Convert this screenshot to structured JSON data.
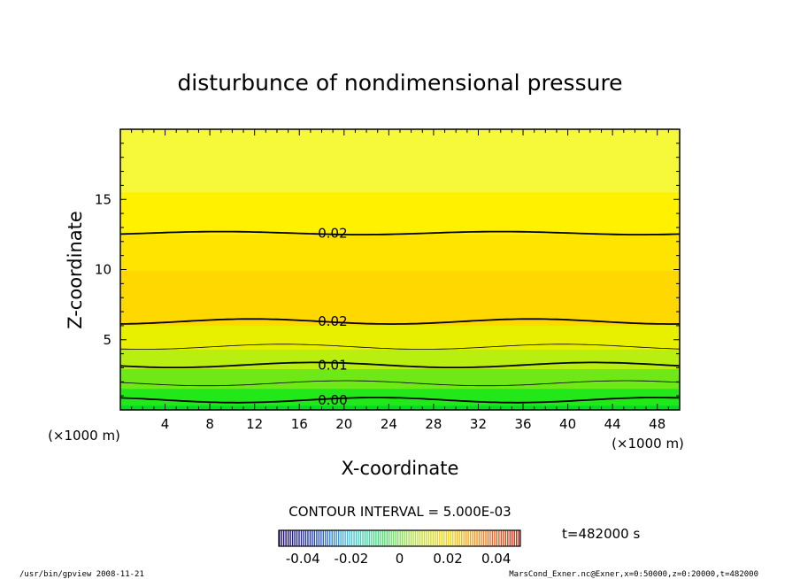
{
  "chart_data": {
    "type": "contour",
    "title": "disturbunce of nondimensional pressure",
    "xlabel": "X-coordinate",
    "ylabel": "Z-coordinate",
    "x_unit": "(×1000 m)",
    "y_unit": "(×1000 m)",
    "xlim": [
      0,
      50
    ],
    "ylim": [
      0,
      20
    ],
    "x_ticks": [
      4,
      8,
      12,
      16,
      20,
      24,
      28,
      32,
      36,
      40,
      44,
      48
    ],
    "y_ticks": [
      5,
      10,
      15
    ],
    "contour_labels": [
      {
        "x": 17.4,
        "y": 12.6,
        "text": "0.02"
      },
      {
        "x": 17.4,
        "y": 6.3,
        "text": "0.02"
      },
      {
        "x": 17.4,
        "y": 3.2,
        "text": "0.01"
      },
      {
        "x": 17.4,
        "y": 0.7,
        "text": "0.00"
      }
    ],
    "contour_interval_label": "CONTOUR INTERVAL = 5.000E-03",
    "colorbar": {
      "ticks": [
        "-0.04",
        "-0.02",
        "0",
        "0.02",
        "0.04"
      ],
      "range": [
        -0.05,
        0.05
      ],
      "colors": [
        "#1a0066",
        "#1f3dcc",
        "#3ec0e8",
        "#3ee86b",
        "#b8e03a",
        "#ffd200",
        "#ff7a1f",
        "#c02010"
      ]
    },
    "time_label": "t=482000 s",
    "bands": [
      {
        "z_from": 0,
        "z_to": 0.6,
        "color": "#00dd1e"
      },
      {
        "z_from": 0.6,
        "z_to": 1.8,
        "color": "#22e81a"
      },
      {
        "z_from": 1.8,
        "z_to": 3.2,
        "color": "#6ee816"
      },
      {
        "z_from": 3.2,
        "z_to": 4.6,
        "color": "#b8ee10"
      },
      {
        "z_from": 4.6,
        "z_to": 6.3,
        "color": "#e8f000"
      },
      {
        "z_from": 6.3,
        "z_to": 10.2,
        "color": "#ffd800"
      },
      {
        "z_from": 10.2,
        "z_to": 12.8,
        "color": "#ffe400"
      },
      {
        "z_from": 12.8,
        "z_to": 15.8,
        "color": "#fff100"
      },
      {
        "z_from": 15.8,
        "z_to": 20,
        "color": "#f6f83a"
      }
    ],
    "contours": [
      {
        "z": 0.7,
        "width": "thick"
      },
      {
        "z": 1.9,
        "width": "thin"
      },
      {
        "z": 3.2,
        "width": "thick"
      },
      {
        "z": 4.5,
        "width": "thin"
      },
      {
        "z": 6.3,
        "width": "thick"
      },
      {
        "z": 12.6,
        "width": "thick"
      }
    ]
  },
  "footer": {
    "left": "/usr/bin/gpview  2008-11-21",
    "right": "MarsCond_Exner.nc@Exner,x=0:50000,z=0:20000,t=482000"
  }
}
